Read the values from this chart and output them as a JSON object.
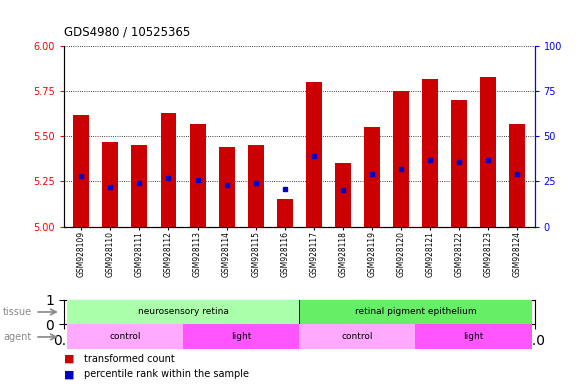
{
  "title": "GDS4980 / 10525365",
  "samples": [
    "GSM928109",
    "GSM928110",
    "GSM928111",
    "GSM928112",
    "GSM928113",
    "GSM928114",
    "GSM928115",
    "GSM928116",
    "GSM928117",
    "GSM928118",
    "GSM928119",
    "GSM928120",
    "GSM928121",
    "GSM928122",
    "GSM928123",
    "GSM928124"
  ],
  "transformed_count": [
    5.62,
    5.47,
    5.45,
    5.63,
    5.57,
    5.44,
    5.45,
    5.15,
    5.8,
    5.35,
    5.55,
    5.75,
    5.82,
    5.7,
    5.83,
    5.57
  ],
  "percentile_rank_pct": [
    28,
    22,
    24,
    27,
    26,
    23,
    24,
    21,
    39,
    20,
    29,
    32,
    37,
    36,
    37,
    29
  ],
  "ylim_left": [
    5.0,
    6.0
  ],
  "ylim_right": [
    0,
    100
  ],
  "yticks_left": [
    5.0,
    5.25,
    5.5,
    5.75,
    6.0
  ],
  "yticks_right": [
    0,
    25,
    50,
    75,
    100
  ],
  "bar_color": "#cc0000",
  "marker_color": "#0000cc",
  "tissue_groups": [
    {
      "label": "neurosensory retina",
      "start": 0,
      "end": 7,
      "color": "#aaffaa"
    },
    {
      "label": "retinal pigment epithelium",
      "start": 8,
      "end": 15,
      "color": "#66ee66"
    }
  ],
  "agent_groups": [
    {
      "label": "control",
      "start": 0,
      "end": 3,
      "color": "#ffaaff"
    },
    {
      "label": "light",
      "start": 4,
      "end": 7,
      "color": "#ff55ff"
    },
    {
      "label": "control",
      "start": 8,
      "end": 11,
      "color": "#ffaaff"
    },
    {
      "label": "light",
      "start": 12,
      "end": 15,
      "color": "#ff55ff"
    }
  ],
  "legend_items": [
    {
      "label": "transformed count",
      "color": "#cc0000"
    },
    {
      "label": "percentile rank within the sample",
      "color": "#0000cc"
    }
  ],
  "row_label_color": "#888888"
}
